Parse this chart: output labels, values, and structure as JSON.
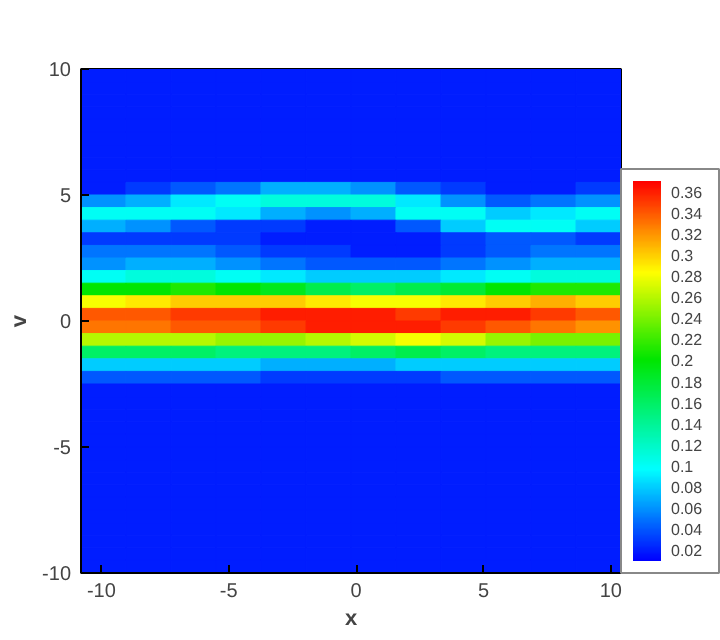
{
  "chart_data": {
    "type": "heatmap",
    "xlabel": "x",
    "ylabel": "v",
    "x": [
      -9.92,
      -8.15,
      -6.38,
      -4.62,
      -2.85,
      -1.08,
      0.68,
      2.45,
      4.22,
      5.98,
      7.75,
      9.52
    ],
    "xlim": [
      -10.8,
      10.4
    ],
    "xticks": [
      -10,
      -5,
      0,
      5,
      10
    ],
    "ylim": [
      -10,
      10
    ],
    "yticks": [
      -10,
      -5,
      0,
      5,
      10
    ],
    "clim": [
      0.01,
      0.37
    ],
    "cticks": [
      0.02,
      0.04,
      0.06,
      0.08,
      0.1,
      0.12,
      0.14,
      0.16,
      0.18,
      0.2,
      0.22,
      0.24,
      0.26,
      0.28,
      0.3,
      0.32,
      0.34,
      0.36
    ],
    "cells": [
      [
        0.02,
        0.02,
        0.02,
        0.02,
        0.02,
        0.02,
        0.02,
        0.02,
        0.02,
        0.02,
        0.02,
        0.02
      ],
      [
        0.02,
        0.02,
        0.02,
        0.02,
        0.02,
        0.02,
        0.02,
        0.02,
        0.02,
        0.02,
        0.02,
        0.02
      ],
      [
        0.02,
        0.02,
        0.02,
        0.02,
        0.02,
        0.02,
        0.02,
        0.02,
        0.02,
        0.02,
        0.02,
        0.02
      ],
      [
        0.02,
        0.02,
        0.02,
        0.02,
        0.02,
        0.02,
        0.02,
        0.02,
        0.02,
        0.02,
        0.02,
        0.02
      ],
      [
        0.02,
        0.02,
        0.02,
        0.02,
        0.02,
        0.02,
        0.02,
        0.02,
        0.02,
        0.02,
        0.02,
        0.02
      ],
      [
        0.02,
        0.02,
        0.02,
        0.02,
        0.02,
        0.02,
        0.02,
        0.02,
        0.02,
        0.02,
        0.02,
        0.02
      ],
      [
        0.02,
        0.02,
        0.02,
        0.02,
        0.02,
        0.02,
        0.02,
        0.02,
        0.02,
        0.02,
        0.02,
        0.02
      ],
      [
        0.02,
        0.02,
        0.02,
        0.02,
        0.02,
        0.02,
        0.02,
        0.02,
        0.02,
        0.02,
        0.02,
        0.02
      ],
      [
        0.02,
        0.02,
        0.02,
        0.02,
        0.02,
        0.02,
        0.02,
        0.02,
        0.02,
        0.02,
        0.02,
        0.02
      ],
      [
        0.02,
        0.03,
        0.04,
        0.05,
        0.07,
        0.07,
        0.06,
        0.04,
        0.03,
        0.02,
        0.02,
        0.03
      ],
      [
        0.06,
        0.07,
        0.09,
        0.1,
        0.11,
        0.11,
        0.11,
        0.09,
        0.06,
        0.04,
        0.05,
        0.06
      ],
      [
        0.1,
        0.1,
        0.1,
        0.09,
        0.07,
        0.06,
        0.07,
        0.1,
        0.1,
        0.08,
        0.09,
        0.1
      ],
      [
        0.07,
        0.06,
        0.04,
        0.03,
        0.03,
        0.02,
        0.02,
        0.04,
        0.08,
        0.1,
        0.1,
        0.08
      ],
      [
        0.03,
        0.03,
        0.03,
        0.03,
        0.02,
        0.02,
        0.02,
        0.02,
        0.03,
        0.04,
        0.04,
        0.03
      ],
      [
        0.05,
        0.05,
        0.05,
        0.04,
        0.03,
        0.03,
        0.02,
        0.02,
        0.03,
        0.04,
        0.05,
        0.05
      ],
      [
        0.06,
        0.07,
        0.07,
        0.06,
        0.05,
        0.04,
        0.04,
        0.04,
        0.05,
        0.06,
        0.07,
        0.07
      ],
      [
        0.1,
        0.11,
        0.11,
        0.1,
        0.09,
        0.08,
        0.08,
        0.08,
        0.09,
        0.1,
        0.11,
        0.11
      ],
      [
        0.2,
        0.2,
        0.21,
        0.2,
        0.19,
        0.17,
        0.16,
        0.17,
        0.18,
        0.2,
        0.21,
        0.21
      ],
      [
        0.28,
        0.29,
        0.3,
        0.3,
        0.3,
        0.29,
        0.28,
        0.28,
        0.29,
        0.3,
        0.31,
        0.3
      ],
      [
        0.34,
        0.34,
        0.35,
        0.35,
        0.36,
        0.36,
        0.36,
        0.35,
        0.36,
        0.36,
        0.35,
        0.34
      ],
      [
        0.33,
        0.33,
        0.34,
        0.34,
        0.35,
        0.36,
        0.36,
        0.36,
        0.35,
        0.34,
        0.33,
        0.32
      ],
      [
        0.26,
        0.26,
        0.26,
        0.25,
        0.25,
        0.26,
        0.27,
        0.28,
        0.27,
        0.25,
        0.24,
        0.24
      ],
      [
        0.16,
        0.16,
        0.16,
        0.15,
        0.15,
        0.15,
        0.16,
        0.17,
        0.16,
        0.15,
        0.15,
        0.15
      ],
      [
        0.08,
        0.08,
        0.08,
        0.08,
        0.07,
        0.07,
        0.07,
        0.08,
        0.08,
        0.08,
        0.08,
        0.08
      ],
      [
        0.04,
        0.04,
        0.04,
        0.04,
        0.03,
        0.03,
        0.03,
        0.03,
        0.04,
        0.04,
        0.04,
        0.04
      ],
      [
        0.02,
        0.02,
        0.02,
        0.02,
        0.02,
        0.02,
        0.02,
        0.02,
        0.02,
        0.02,
        0.02,
        0.02
      ],
      [
        0.02,
        0.02,
        0.02,
        0.02,
        0.02,
        0.02,
        0.02,
        0.02,
        0.02,
        0.02,
        0.02,
        0.02
      ],
      [
        0.02,
        0.02,
        0.02,
        0.02,
        0.02,
        0.02,
        0.02,
        0.02,
        0.02,
        0.02,
        0.02,
        0.02
      ],
      [
        0.02,
        0.02,
        0.02,
        0.02,
        0.02,
        0.02,
        0.02,
        0.02,
        0.02,
        0.02,
        0.02,
        0.02
      ],
      [
        0.02,
        0.02,
        0.02,
        0.02,
        0.02,
        0.02,
        0.02,
        0.02,
        0.02,
        0.02,
        0.02,
        0.02
      ],
      [
        0.02,
        0.02,
        0.02,
        0.02,
        0.02,
        0.02,
        0.02,
        0.02,
        0.02,
        0.02,
        0.02,
        0.02
      ],
      [
        0.02,
        0.02,
        0.02,
        0.02,
        0.02,
        0.02,
        0.02,
        0.02,
        0.02,
        0.02,
        0.02,
        0.02
      ],
      [
        0.02,
        0.02,
        0.02,
        0.02,
        0.02,
        0.02,
        0.02,
        0.02,
        0.02,
        0.02,
        0.02,
        0.02
      ],
      [
        0.02,
        0.02,
        0.02,
        0.02,
        0.02,
        0.02,
        0.02,
        0.02,
        0.02,
        0.02,
        0.02,
        0.02
      ],
      [
        0.02,
        0.02,
        0.02,
        0.02,
        0.02,
        0.02,
        0.02,
        0.02,
        0.02,
        0.02,
        0.02,
        0.02
      ],
      [
        0.02,
        0.02,
        0.02,
        0.02,
        0.02,
        0.02,
        0.02,
        0.02,
        0.02,
        0.02,
        0.02,
        0.02
      ],
      [
        0.02,
        0.02,
        0.02,
        0.02,
        0.02,
        0.02,
        0.02,
        0.02,
        0.02,
        0.02,
        0.02,
        0.02
      ],
      [
        0.02,
        0.02,
        0.02,
        0.02,
        0.02,
        0.02,
        0.02,
        0.02,
        0.02,
        0.02,
        0.02,
        0.02
      ],
      [
        0.02,
        0.02,
        0.02,
        0.02,
        0.02,
        0.02,
        0.02,
        0.02,
        0.02,
        0.02,
        0.02,
        0.02
      ],
      [
        0.02,
        0.02,
        0.02,
        0.02,
        0.02,
        0.02,
        0.02,
        0.02,
        0.02,
        0.02,
        0.02,
        0.02
      ]
    ]
  }
}
